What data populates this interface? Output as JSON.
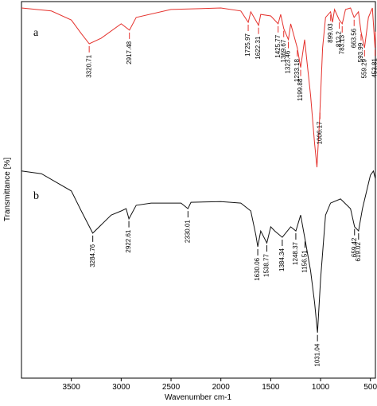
{
  "chart_data": {
    "type": "line",
    "x_label": "Wavenumber cm-1",
    "y_label": "Transmittance [%]",
    "xlim": [
      4000,
      450
    ],
    "ylim": [
      0,
      100
    ],
    "xticks": [
      3500,
      3000,
      2500,
      2000,
      1500,
      1000,
      500
    ],
    "series": [
      {
        "name": "a",
        "color": "#e5322d",
        "x": [
          4000,
          3700,
          3500,
          3400,
          3320,
          3200,
          3000,
          2917,
          2850,
          2500,
          2000,
          1800,
          1726,
          1700,
          1622,
          1600,
          1500,
          1426,
          1400,
          1369,
          1323,
          1300,
          1233,
          1200,
          1160,
          1100,
          1060,
          1036,
          1010,
          980,
          950,
          900,
          880,
          860,
          812,
          783,
          750,
          700,
          664,
          620,
          594,
          559,
          520,
          480,
          454,
          450
        ],
        "values": [
          98.3,
          97.5,
          95.1,
          91.5,
          88.8,
          90.3,
          94.1,
          92.4,
          95.8,
          97.9,
          98.3,
          97.5,
          94.5,
          97.3,
          93.7,
          96.6,
          96.2,
          94.1,
          96.6,
          92.8,
          89.9,
          94.1,
          87.7,
          82.5,
          89.9,
          75.1,
          62.4,
          56.0,
          68.7,
          87.7,
          95.8,
          97.3,
          94.5,
          97.9,
          95.1,
          94.1,
          97.9,
          98.3,
          95.8,
          97.3,
          92.0,
          87.7,
          95.8,
          98.3,
          87.7,
          92.0
        ],
        "peaks": [
          3320.71,
          2917.48,
          1725.97,
          1622.31,
          1425.77,
          1369.67,
          1323.46,
          1233.18,
          1199.88,
          1006.17,
          899.03,
          812.2,
          783.13,
          663.56,
          593.99,
          559.29,
          453.81
        ]
      },
      {
        "name": "b",
        "color": "#111111",
        "x": [
          4000,
          3800,
          3500,
          3400,
          3285,
          3100,
          3000,
          2950,
          2922,
          2850,
          2700,
          2400,
          2330,
          2300,
          2000,
          1800,
          1700,
          1650,
          1630,
          1600,
          1539,
          1500,
          1460,
          1384,
          1300,
          1248,
          1200,
          1157,
          1100,
          1060,
          1031,
          1000,
          950,
          900,
          800,
          700,
          659,
          619,
          580,
          500,
          470,
          450
        ],
        "values": [
          55.0,
          54.3,
          49.7,
          44.4,
          38.5,
          43.3,
          44.4,
          45.0,
          42.3,
          45.9,
          46.5,
          46.5,
          45.0,
          46.7,
          46.9,
          46.5,
          44.4,
          38.1,
          34.9,
          39.1,
          35.9,
          40.2,
          39.1,
          37.4,
          40.2,
          39.1,
          43.3,
          37.0,
          28.5,
          20.1,
          12.1,
          26.4,
          43.3,
          46.5,
          47.6,
          45.0,
          40.2,
          39.1,
          45.0,
          53.9,
          55.0,
          52.9
        ],
        "peaks": [
          3284.76,
          2922.61,
          2330.01,
          1630.06,
          1538.77,
          1384.34,
          1248.37,
          1156.51,
          1031.04,
          659.42,
          619.02
        ]
      }
    ]
  }
}
